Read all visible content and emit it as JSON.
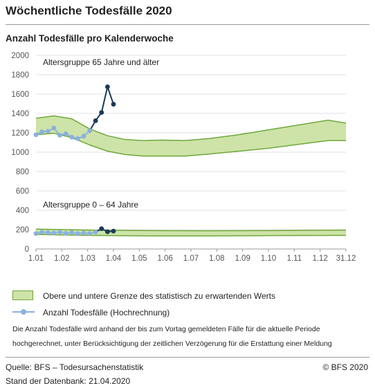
{
  "header": {
    "title": "Wöchentliche Todesfälle 2020",
    "subtitle": "Anzahl Todesfälle pro Kalenderwoche"
  },
  "chart_data": {
    "type": "line",
    "x_unit": "week",
    "x_ticks": [
      "1.01",
      "1.02",
      "1.03",
      "1.04",
      "1.05",
      "1.06",
      "1.07",
      "1.08",
      "1.09",
      "1.10",
      "1.11",
      "1.12",
      "31.12"
    ],
    "ylim": [
      0,
      2000
    ],
    "y_ticks": [
      0,
      200,
      400,
      600,
      800,
      1000,
      1200,
      1400,
      1600,
      1800,
      2000
    ],
    "grid": true,
    "annotations": [
      "Altersgruppe 65 Jahre und älter",
      "Altersgruppe 0 – 64 Jahre"
    ],
    "colors": {
      "band_fill": "#cde3a7",
      "band_stroke": "#6fa83a",
      "estimate": "#8ab1e0",
      "recent": "#1b3a57"
    },
    "bands": [
      {
        "group": "65 Jahre und älter",
        "weeks": [
          1,
          4,
          7,
          10,
          13,
          16,
          19,
          22,
          26,
          30,
          35,
          40,
          45,
          50,
          53
        ],
        "upper": [
          1350,
          1375,
          1345,
          1240,
          1170,
          1130,
          1120,
          1125,
          1120,
          1140,
          1180,
          1230,
          1280,
          1330,
          1300
        ],
        "lower": [
          1180,
          1195,
          1150,
          1075,
          1010,
          975,
          960,
          960,
          960,
          980,
          1010,
          1040,
          1080,
          1120,
          1120
        ]
      },
      {
        "group": "0 – 64 Jahre",
        "weeks": [
          1,
          10,
          20,
          30,
          40,
          53
        ],
        "upper": [
          205,
          195,
          190,
          188,
          190,
          195
        ],
        "lower": [
          150,
          140,
          135,
          135,
          138,
          140
        ]
      }
    ],
    "series": [
      {
        "name": "Anzahl Todesfälle (Hochrechnung)",
        "group": "65 Jahre und älter",
        "x": [
          1,
          2,
          3,
          4,
          5,
          6,
          7,
          8,
          9,
          10,
          11,
          12,
          13,
          14,
          15
        ],
        "values": [
          1180,
          1210,
          1215,
          1250,
          1175,
          1190,
          1155,
          1140,
          1165,
          1220,
          1325,
          1410,
          1675,
          1495,
          null
        ],
        "recent_from_index": 10
      },
      {
        "name": "Anzahl Todesfälle (Hochrechnung)",
        "group": "0 – 64 Jahre",
        "x": [
          1,
          2,
          3,
          4,
          5,
          6,
          7,
          8,
          9,
          10,
          11,
          12,
          13,
          14,
          15
        ],
        "values": [
          160,
          175,
          170,
          165,
          175,
          162,
          170,
          160,
          165,
          160,
          175,
          210,
          178,
          185,
          null
        ],
        "recent_from_index": 11
      }
    ]
  },
  "legend": {
    "band": "Obere und untere Grenze des statistisch zu erwartenden Werts",
    "line": "Anzahl Todesfälle (Hochrechnung)"
  },
  "note": "Die Anzahl Todesfälle wird anhand der bis zum Vortag gemeldeten Fälle für die aktuelle Periode hochgerechnet, unter Berücksichtigung der zeitlichen Verzögerung für die Erstattung einer Meldung",
  "footer": {
    "source": "Quelle: BFS – Todesursachenstatistik",
    "date": "Stand der Datenbank: 21.04.2020",
    "copyright": "© BFS 2020"
  }
}
